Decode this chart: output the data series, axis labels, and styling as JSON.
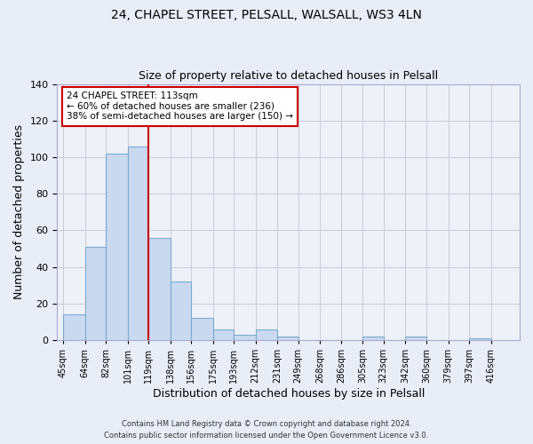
{
  "title1": "24, CHAPEL STREET, PELSALL, WALSALL, WS3 4LN",
  "title2": "Size of property relative to detached houses in Pelsall",
  "xlabel": "Distribution of detached houses by size in Pelsall",
  "ylabel": "Number of detached properties",
  "bin_labels": [
    "45sqm",
    "64sqm",
    "82sqm",
    "101sqm",
    "119sqm",
    "138sqm",
    "156sqm",
    "175sqm",
    "193sqm",
    "212sqm",
    "231sqm",
    "249sqm",
    "268sqm",
    "286sqm",
    "305sqm",
    "323sqm",
    "342sqm",
    "360sqm",
    "379sqm",
    "397sqm",
    "416sqm"
  ],
  "bar_heights": [
    14,
    51,
    102,
    106,
    56,
    32,
    12,
    6,
    3,
    6,
    2,
    0,
    0,
    0,
    2,
    0,
    2,
    0,
    0,
    1
  ],
  "bar_color": "#c9d9f0",
  "bar_edge_color": "#7aaad0",
  "ylim": [
    0,
    140
  ],
  "yticks": [
    0,
    20,
    40,
    60,
    80,
    100,
    120,
    140
  ],
  "marker_label": "24 CHAPEL STREET: 113sqm",
  "annotation_line1": "← 60% of detached houses are smaller (236)",
  "annotation_line2": "38% of semi-detached houses are larger (150) →",
  "annotation_box_color": "#ffffff",
  "annotation_box_edge": "#cc0000",
  "footer1": "Contains HM Land Registry data © Crown copyright and database right 2024.",
  "footer2": "Contains public sector information licensed under the Open Government Licence v3.0.",
  "background_color": "#e8edf8",
  "plot_bg_color": "#eef1f8",
  "grid_color": "#c8ccd8"
}
